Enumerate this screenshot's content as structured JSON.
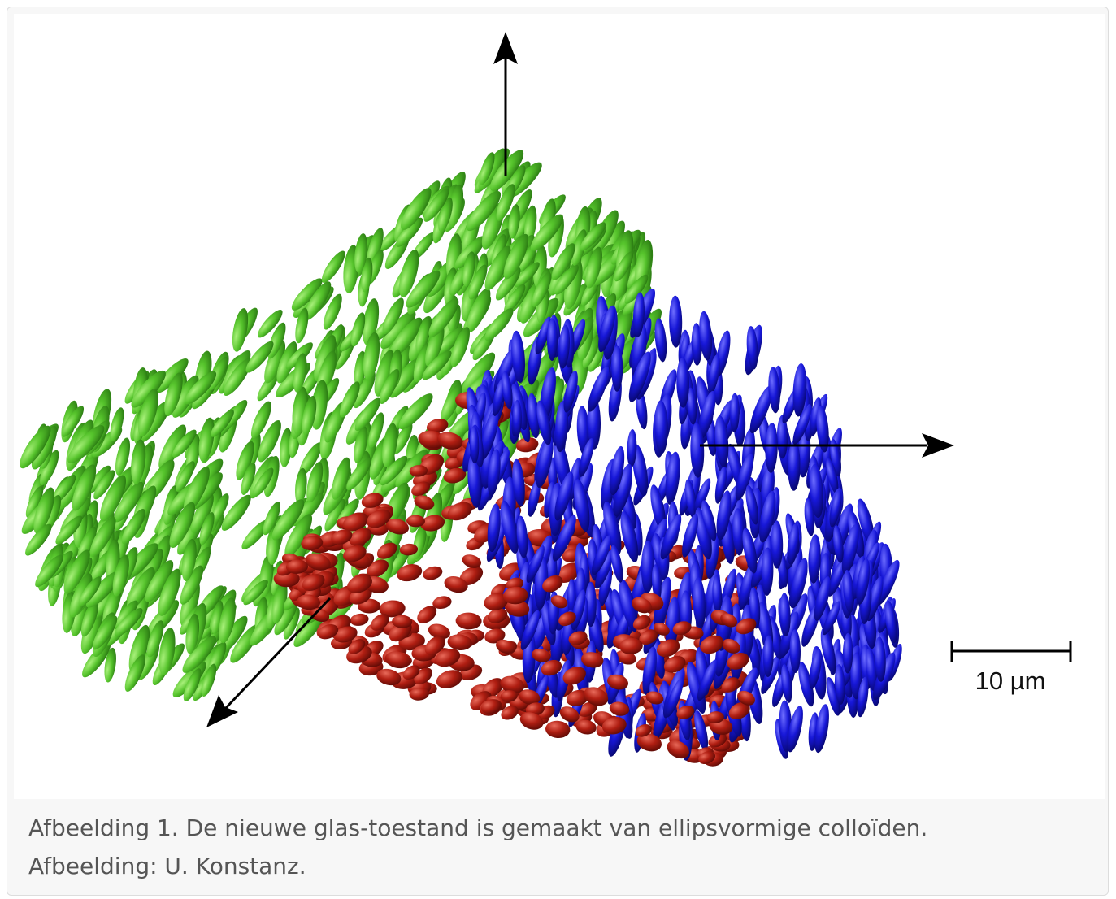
{
  "figure": {
    "scale_bar_label": "10 µm",
    "caption": [
      "Afbeelding 1. De nieuwe glas-toestand is gemaakt van ellipsvormige colloïden.",
      "Afbeelding: U. Konstanz."
    ]
  }
}
